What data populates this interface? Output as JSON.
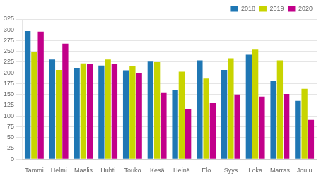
{
  "chart_data": {
    "type": "bar",
    "categories": [
      "Tammi",
      "Helmi",
      "Maalis",
      "Huhti",
      "Touko",
      "Kesä",
      "Heinä",
      "Elo",
      "Syys",
      "Loka",
      "Marras",
      "Joulu"
    ],
    "series": [
      {
        "name": "2018",
        "color": "#1f77b4",
        "values": [
          297,
          231,
          212,
          217,
          206,
          226,
          161,
          229,
          207,
          242,
          181,
          135
        ]
      },
      {
        "name": "2019",
        "color": "#c8d400",
        "values": [
          249,
          207,
          222,
          231,
          216,
          225,
          203,
          187,
          234,
          254,
          229,
          163
        ]
      },
      {
        "name": "2020",
        "color": "#c2008a",
        "values": [
          296,
          268,
          220,
          220,
          200,
          155,
          115,
          130,
          150,
          145,
          151,
          91
        ]
      }
    ],
    "ylim": [
      0,
      325
    ],
    "yticks": [
      0,
      25,
      50,
      75,
      100,
      125,
      150,
      175,
      200,
      225,
      250,
      275,
      300,
      325
    ],
    "grid": "y",
    "legend": "upper right"
  }
}
